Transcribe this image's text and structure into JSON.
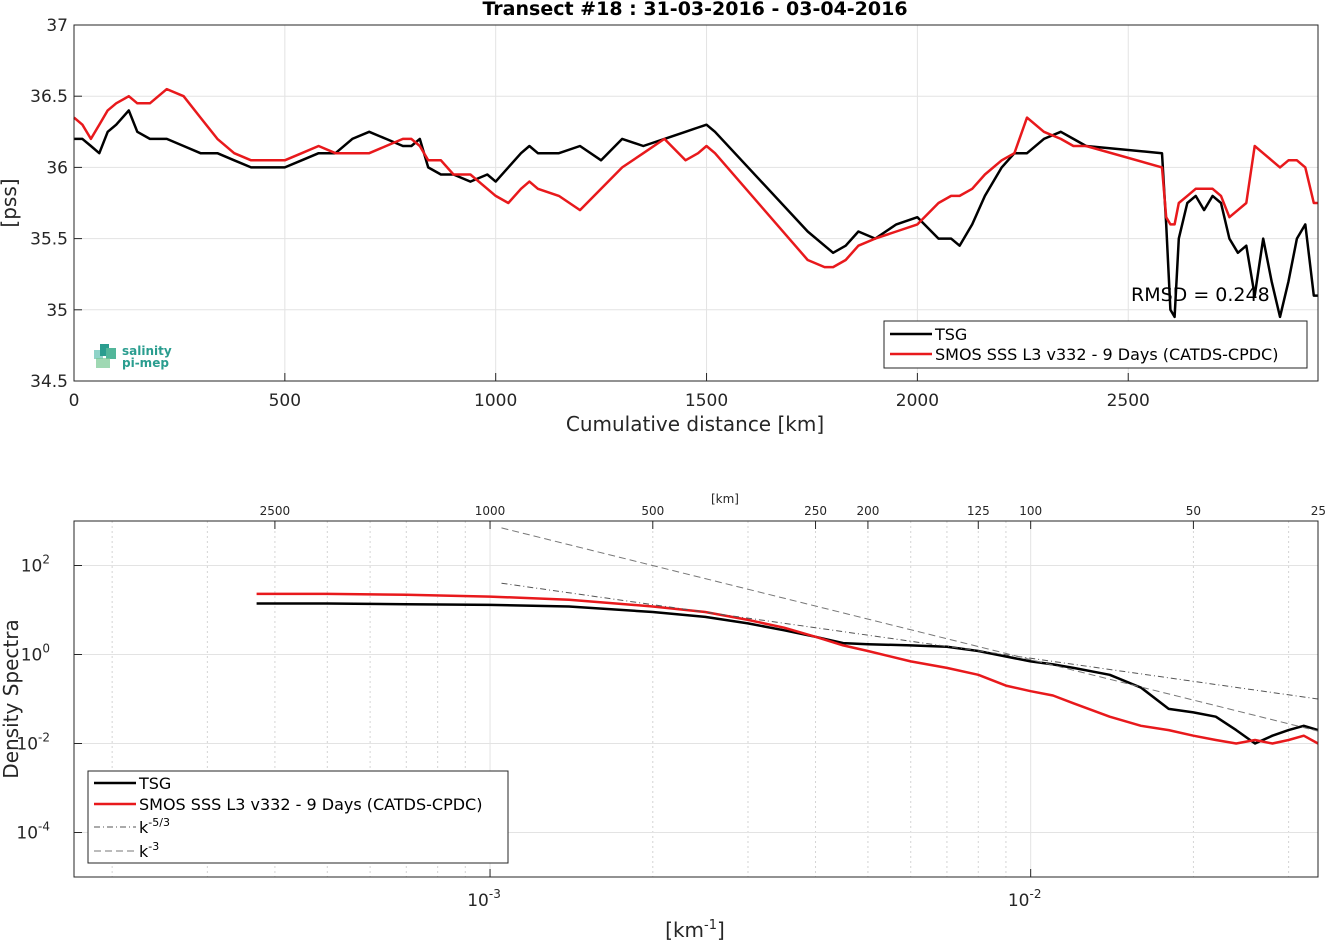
{
  "chart_data": [
    {
      "type": "line",
      "title": "Transect #18 : 31-03-2016 - 03-04-2016",
      "xlabel": "Cumulative distance [km]",
      "ylabel": "[pss]",
      "xlim": [
        0,
        2950
      ],
      "ylim": [
        34.5,
        37
      ],
      "xticks": [
        0,
        500,
        1000,
        1500,
        2000,
        2500
      ],
      "yticks": [
        34.5,
        35,
        35.5,
        36,
        36.5,
        37
      ],
      "xtick_labels": [
        "0",
        "500",
        "1000",
        "1500",
        "2000",
        "2500"
      ],
      "ytick_labels": [
        "34.5",
        "35",
        "35.5",
        "36",
        "36.5",
        "37"
      ],
      "grid": true,
      "legend_position": "bottom-right",
      "annotation": "RMSD = 0.248",
      "logo_text": [
        "salinity",
        "pi-mep"
      ],
      "series": [
        {
          "name": "TSG",
          "color": "#000000",
          "x": [
            0,
            20,
            40,
            60,
            80,
            100,
            130,
            150,
            180,
            220,
            260,
            300,
            340,
            380,
            420,
            460,
            500,
            540,
            580,
            620,
            660,
            700,
            740,
            780,
            800,
            820,
            840,
            870,
            900,
            940,
            980,
            1000,
            1030,
            1060,
            1080,
            1100,
            1150,
            1200,
            1250,
            1300,
            1350,
            1400,
            1450,
            1480,
            1500,
            1520,
            1740,
            1780,
            1800,
            1830,
            1860,
            1900,
            1950,
            2000,
            2050,
            2080,
            2100,
            2130,
            2160,
            2200,
            2230,
            2260,
            2300,
            2340,
            2370,
            2400,
            2580,
            2590,
            2600,
            2610,
            2620,
            2640,
            2660,
            2680,
            2700,
            2720,
            2740,
            2760,
            2780,
            2800,
            2820,
            2840,
            2860,
            2880,
            2900,
            2920,
            2940,
            2950
          ],
          "y": [
            36.2,
            36.2,
            36.15,
            36.1,
            36.25,
            36.3,
            36.4,
            36.25,
            36.2,
            36.2,
            36.15,
            36.1,
            36.1,
            36.05,
            36.0,
            36.0,
            36.0,
            36.05,
            36.1,
            36.1,
            36.2,
            36.25,
            36.2,
            36.15,
            36.15,
            36.2,
            36.0,
            35.95,
            35.95,
            35.9,
            35.95,
            35.9,
            36.0,
            36.1,
            36.15,
            36.1,
            36.1,
            36.15,
            36.05,
            36.2,
            36.15,
            36.2,
            36.25,
            36.28,
            36.3,
            36.25,
            35.55,
            35.45,
            35.4,
            35.45,
            35.55,
            35.5,
            35.6,
            35.65,
            35.5,
            35.5,
            35.45,
            35.6,
            35.8,
            36.0,
            36.1,
            36.1,
            36.2,
            36.25,
            36.2,
            36.15,
            36.1,
            35.6,
            35.0,
            34.95,
            35.5,
            35.75,
            35.8,
            35.7,
            35.8,
            35.75,
            35.5,
            35.4,
            35.45,
            35.1,
            35.5,
            35.2,
            34.95,
            35.2,
            35.5,
            35.6,
            35.1,
            35.1
          ]
        },
        {
          "name": "SMOS SSS L3 v332 - 9 Days (CATDS-CPDC)",
          "color": "#e8191c",
          "x": [
            0,
            20,
            40,
            60,
            80,
            100,
            130,
            150,
            180,
            220,
            260,
            300,
            340,
            380,
            420,
            460,
            500,
            540,
            580,
            620,
            660,
            700,
            740,
            780,
            800,
            820,
            840,
            870,
            900,
            940,
            980,
            1000,
            1030,
            1060,
            1080,
            1100,
            1150,
            1200,
            1250,
            1300,
            1350,
            1400,
            1450,
            1480,
            1500,
            1520,
            1740,
            1780,
            1800,
            1830,
            1860,
            1900,
            1950,
            2000,
            2050,
            2080,
            2100,
            2130,
            2160,
            2200,
            2230,
            2260,
            2300,
            2340,
            2370,
            2400,
            2580,
            2590,
            2600,
            2610,
            2620,
            2640,
            2660,
            2680,
            2700,
            2720,
            2740,
            2760,
            2780,
            2800,
            2820,
            2840,
            2860,
            2880,
            2900,
            2920,
            2940,
            2950
          ],
          "y": [
            36.35,
            36.3,
            36.2,
            36.3,
            36.4,
            36.45,
            36.5,
            36.45,
            36.45,
            36.55,
            36.5,
            36.35,
            36.2,
            36.1,
            36.05,
            36.05,
            36.05,
            36.1,
            36.15,
            36.1,
            36.1,
            36.1,
            36.15,
            36.2,
            36.2,
            36.15,
            36.05,
            36.05,
            35.95,
            35.95,
            35.85,
            35.8,
            35.75,
            35.85,
            35.9,
            35.85,
            35.8,
            35.7,
            35.85,
            36.0,
            36.1,
            36.2,
            36.05,
            36.1,
            36.15,
            36.1,
            35.35,
            35.3,
            35.3,
            35.35,
            35.45,
            35.5,
            35.55,
            35.6,
            35.75,
            35.8,
            35.8,
            35.85,
            35.95,
            36.05,
            36.1,
            36.35,
            36.25,
            36.2,
            36.15,
            36.15,
            36.0,
            35.65,
            35.6,
            35.6,
            35.75,
            35.8,
            35.85,
            35.85,
            35.85,
            35.8,
            35.65,
            35.7,
            35.75,
            36.15,
            36.1,
            36.05,
            36.0,
            36.05,
            36.05,
            36.0,
            35.75,
            35.75
          ]
        }
      ]
    },
    {
      "type": "line",
      "title": "",
      "xlabel": "[km$^{-1}$]",
      "xlabel_main": "[km",
      "xlabel_sup": "-1",
      "xlabel_close": "]",
      "ylabel": "Density Spectra",
      "x_scale": "log",
      "y_scale": "log",
      "xlim": [
        0.00017,
        0.034
      ],
      "ylim": [
        1e-05,
        1000
      ],
      "xticks": [
        0.001,
        0.01
      ],
      "xtick_labels": [
        {
          "base": "10",
          "exp": "-3"
        },
        {
          "base": "10",
          "exp": "-2"
        }
      ],
      "yticks": [
        0.0001,
        0.01,
        1,
        100
      ],
      "ytick_labels": [
        {
          "base": "10",
          "exp": "-4"
        },
        {
          "base": "10",
          "exp": "-2"
        },
        {
          "base": "10",
          "exp": "0"
        },
        {
          "base": "10",
          "exp": "2"
        }
      ],
      "top_axis_label": "[km]",
      "top_ticks_km": [
        2500,
        1000,
        500,
        250,
        200,
        125,
        100,
        50,
        25
      ],
      "top_tick_labels": [
        "2500",
        "1000",
        "500",
        "250",
        "200",
        "125",
        "100",
        "50",
        "25"
      ],
      "grid": true,
      "legend_position": "bottom-left",
      "series": [
        {
          "name": "TSG",
          "color": "#000000",
          "x": [
            0.00037,
            0.0005,
            0.0007,
            0.001,
            0.0014,
            0.002,
            0.0025,
            0.003,
            0.0035,
            0.004,
            0.0045,
            0.005,
            0.006,
            0.007,
            0.008,
            0.009,
            0.01,
            0.011,
            0.012,
            0.014,
            0.016,
            0.018,
            0.02,
            0.022,
            0.024,
            0.026,
            0.028,
            0.03,
            0.032,
            0.034
          ],
          "y": [
            14,
            14,
            13.5,
            13,
            12,
            9,
            7,
            5,
            3.5,
            2.5,
            1.8,
            1.7,
            1.6,
            1.5,
            1.2,
            0.9,
            0.7,
            0.6,
            0.5,
            0.35,
            0.18,
            0.06,
            0.05,
            0.04,
            0.02,
            0.01,
            0.015,
            0.02,
            0.025,
            0.02
          ]
        },
        {
          "name": "SMOS SSS L3 v332 - 9 Days (CATDS-CPDC)",
          "color": "#e8191c",
          "x": [
            0.00037,
            0.0005,
            0.0007,
            0.001,
            0.0014,
            0.002,
            0.0025,
            0.003,
            0.0035,
            0.004,
            0.0045,
            0.005,
            0.006,
            0.007,
            0.008,
            0.009,
            0.01,
            0.011,
            0.012,
            0.014,
            0.016,
            0.018,
            0.02,
            0.022,
            0.024,
            0.026,
            0.028,
            0.03,
            0.032,
            0.034
          ],
          "y": [
            23,
            23,
            22,
            20,
            17,
            12,
            9,
            6,
            4,
            2.5,
            1.6,
            1.2,
            0.7,
            0.5,
            0.35,
            0.2,
            0.15,
            0.12,
            0.08,
            0.04,
            0.025,
            0.02,
            0.015,
            0.012,
            0.01,
            0.012,
            0.01,
            0.012,
            0.015,
            0.01
          ]
        },
        {
          "name": "k^{-5/3}",
          "name_main": "k",
          "name_sup": "-5/3",
          "color": "#555555",
          "dash": "dashdot",
          "x": [
            0.00105,
            0.034
          ],
          "y": [
            40,
            0.1
          ]
        },
        {
          "name": "k^{-3}",
          "name_main": "k",
          "name_sup": "-3",
          "color": "#777777",
          "dash": "dash",
          "x": [
            0.00105,
            0.034
          ],
          "y": [
            700,
            0.019
          ]
        }
      ]
    }
  ]
}
